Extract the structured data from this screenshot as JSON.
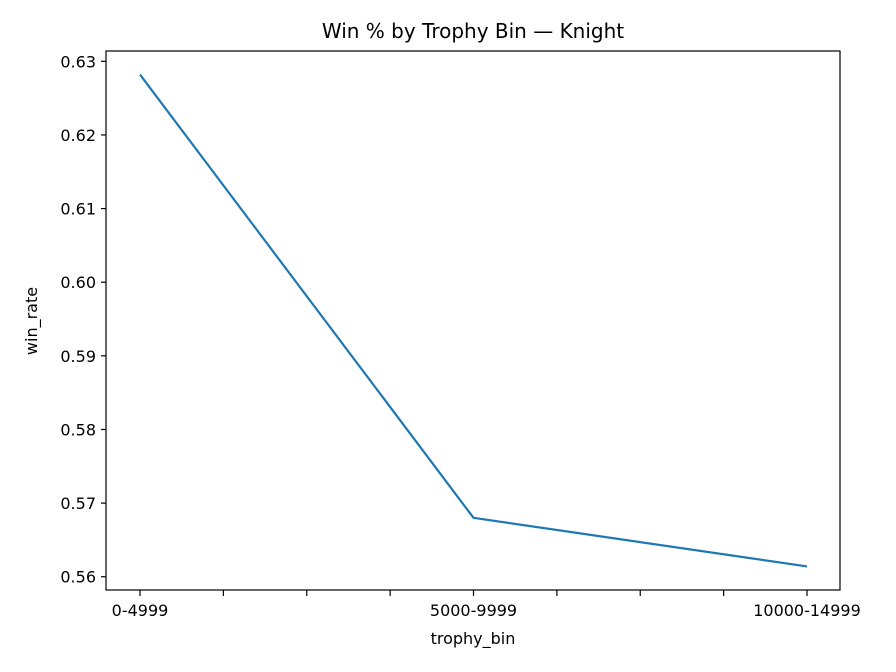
{
  "chart_data": {
    "type": "line",
    "title": "Win % by Trophy Bin — Knight",
    "xlabel": "trophy_bin",
    "ylabel": "win_rate",
    "categories": [
      "0-4999",
      "5000-9999",
      "10000-14999"
    ],
    "series": [
      {
        "values": [
          0.6282,
          0.568,
          0.5614
        ]
      }
    ],
    "ylim": [
      0.5582,
      0.6314
    ],
    "yticks": [
      "0.56",
      "0.57",
      "0.58",
      "0.59",
      "0.60",
      "0.61",
      "0.62",
      "0.63"
    ],
    "grid": false,
    "colors": {
      "line": "#1f77b4",
      "axes": "#000000"
    }
  }
}
